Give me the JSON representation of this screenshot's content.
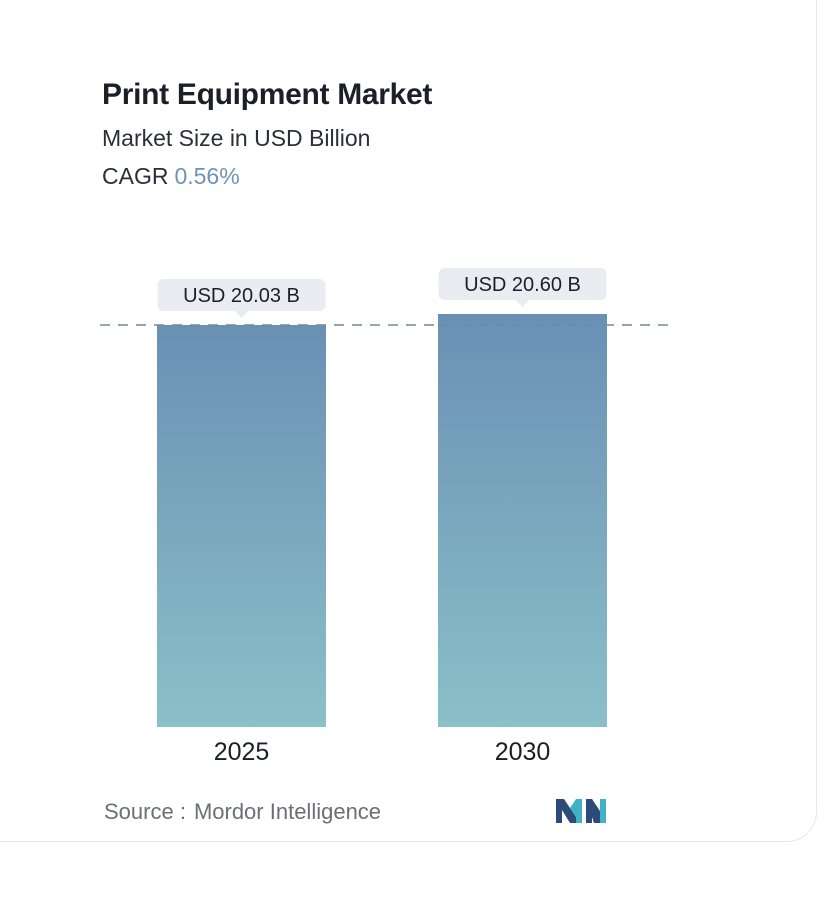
{
  "chart_data": {
    "type": "bar",
    "title": "Print Equipment Market",
    "subtitle": "Market Size in USD Billion",
    "cagr_label": "CAGR",
    "cagr_value": "0.56%",
    "categories": [
      "2025",
      "2030"
    ],
    "values": [
      20.03,
      20.6
    ],
    "value_labels": [
      "USD 20.03 B",
      "USD 20.60 B"
    ],
    "reference_line_value": 20.03,
    "grid": false,
    "legend": "none"
  },
  "source": {
    "label": "Source :",
    "name": "Mordor Intelligence"
  },
  "colors": {
    "bar_top": "#6a90b4",
    "bar_bottom": "#8ac0c8",
    "label_bg": "#e9edf1",
    "dashed_line": "#6f8aa6",
    "logo_dark": "#2c4a7a",
    "logo_teal": "#3fb3c5"
  },
  "icons": {
    "logo": "mordor-intelligence-logo"
  }
}
